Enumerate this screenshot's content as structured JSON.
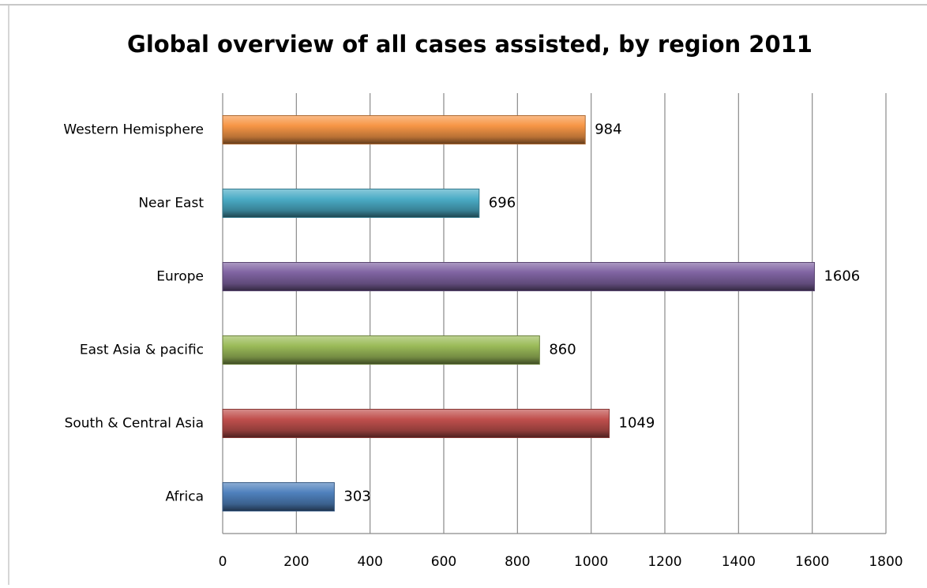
{
  "chart_data": {
    "type": "bar",
    "orientation": "horizontal",
    "title": "Global overview of all cases assisted, by region 2011",
    "categories": [
      "Western Hemisphere",
      "Near East",
      "Europe",
      "East Asia & pacific",
      "South & Central Asia",
      "Africa"
    ],
    "values": [
      984,
      696,
      1606,
      860,
      1049,
      303
    ],
    "colors": [
      "#f79646",
      "#4bacc6",
      "#8064a2",
      "#9bbb59",
      "#c0504d",
      "#4f81bd"
    ],
    "xlim": [
      0,
      1800
    ],
    "xticks": [
      0,
      200,
      400,
      600,
      800,
      1000,
      1200,
      1400,
      1600,
      1800
    ],
    "grid": true
  }
}
